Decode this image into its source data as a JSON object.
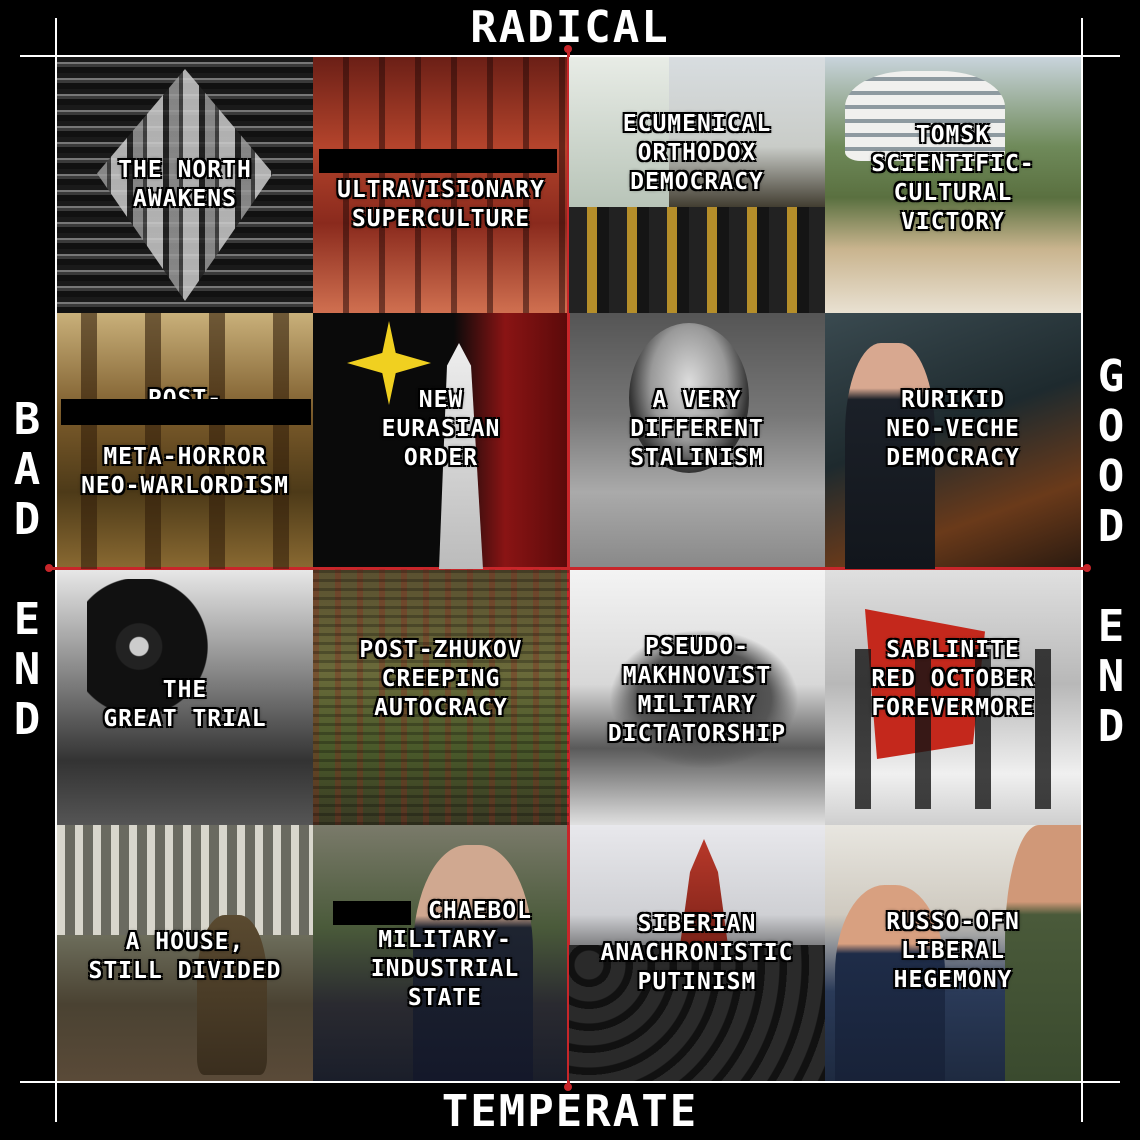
{
  "axes": {
    "top": "RADICAL",
    "bottom": "TEMPERATE",
    "left": [
      "B",
      "A",
      "D",
      "",
      "E",
      "N",
      "D"
    ],
    "right": [
      "G",
      "O",
      "O",
      "D",
      "",
      "E",
      "N",
      "D"
    ]
  },
  "tiles": [
    {
      "lines": [
        "THE NORTH",
        "AWAKENS"
      ]
    },
    {
      "lines": [
        "ULTRAVISIONARY",
        "SUPERCULTURE"
      ]
    },
    {
      "lines": [
        "ECUMENICAL",
        "ORTHODOX",
        "DEMOCRACY"
      ]
    },
    {
      "lines": [
        "TOMSK",
        "SCIENTIFIC-",
        "CULTURAL",
        "VICTORY"
      ]
    },
    {
      "lines": [
        "POST-",
        "",
        "META-HORROR",
        "NEO-WARLORDISM"
      ]
    },
    {
      "lines": [
        "NEW",
        "EURASIAN",
        "ORDER"
      ]
    },
    {
      "lines": [
        "A VERY",
        "DIFFERENT",
        "STALINISM"
      ]
    },
    {
      "lines": [
        "RURIKID",
        "NEO-VECHE",
        "DEMOCRACY"
      ]
    },
    {
      "lines": [
        "THE",
        "GREAT TRIAL"
      ]
    },
    {
      "lines": [
        "POST-ZHUKOV",
        "CREEPING",
        "AUTOCRACY"
      ]
    },
    {
      "lines": [
        "PSEUDO-",
        "MAKHNOVIST",
        "MILITARY",
        "DICTATORSHIP"
      ]
    },
    {
      "lines": [
        "SABLINITE",
        "RED OCTOBER",
        "FOREVERMORE"
      ]
    },
    {
      "lines": [
        "A HOUSE,",
        "STILL DIVIDED"
      ]
    },
    {
      "lines": [
        "CHAEBOL",
        "MILITARY-",
        "INDUSTRIAL",
        "STATE"
      ]
    },
    {
      "lines": [
        "SIBERIAN",
        "ANACHRONISTIC",
        "PUTINISM"
      ]
    },
    {
      "lines": [
        "RUSSO-OFN",
        "LIBERAL",
        "HEGEMONY"
      ]
    }
  ]
}
